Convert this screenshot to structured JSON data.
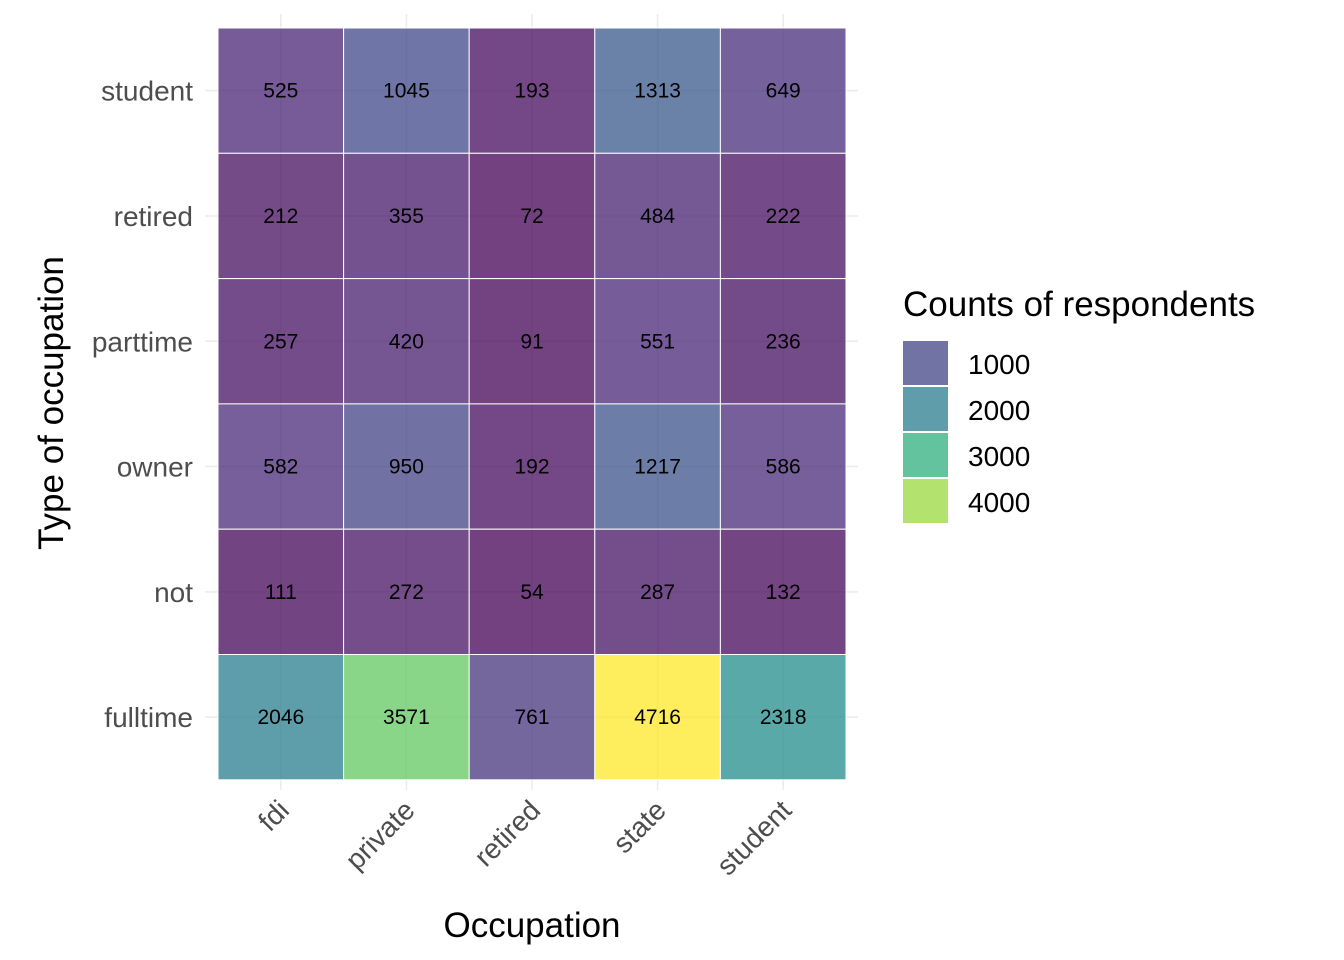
{
  "chart_data": {
    "type": "heatmap",
    "xlabel": "Occupation",
    "ylabel": "Type of occupation",
    "x_categories": [
      "fdi",
      "private",
      "retired",
      "state",
      "student"
    ],
    "y_categories": [
      "student",
      "retired",
      "parttime",
      "owner",
      "not",
      "fulltime"
    ],
    "values": [
      [
        525,
        1045,
        193,
        1313,
        649
      ],
      [
        212,
        355,
        72,
        484,
        222
      ],
      [
        257,
        420,
        91,
        551,
        236
      ],
      [
        582,
        950,
        192,
        1217,
        586
      ],
      [
        111,
        272,
        54,
        287,
        132
      ],
      [
        2046,
        3571,
        761,
        4716,
        2318
      ]
    ],
    "legend": {
      "title": "Counts of respondents",
      "breaks": [
        1000,
        2000,
        3000,
        4000
      ],
      "position": "right"
    },
    "color_scale": "viridis",
    "value_range": [
      54,
      4716
    ],
    "grid": true
  }
}
